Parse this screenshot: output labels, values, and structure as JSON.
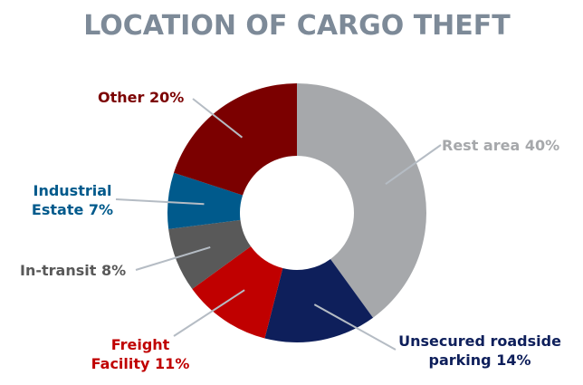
{
  "chart_data": {
    "type": "donut",
    "title": "LOCATION OF CARGO THEFT",
    "categories": [
      "Rest area",
      "Unsecured roadside parking",
      "Freight Facility",
      "In-transit",
      "Industrial Estate",
      "Other"
    ],
    "values": [
      40,
      14,
      11,
      8,
      7,
      20
    ],
    "value_labels": [
      "40%",
      "14%",
      "11%",
      "8%",
      "7%",
      "20%"
    ],
    "colors": [
      "#a6a8ab",
      "#0e1f5b",
      "#c00000",
      "#595959",
      "#005a8c",
      "#7b0000"
    ]
  }
}
